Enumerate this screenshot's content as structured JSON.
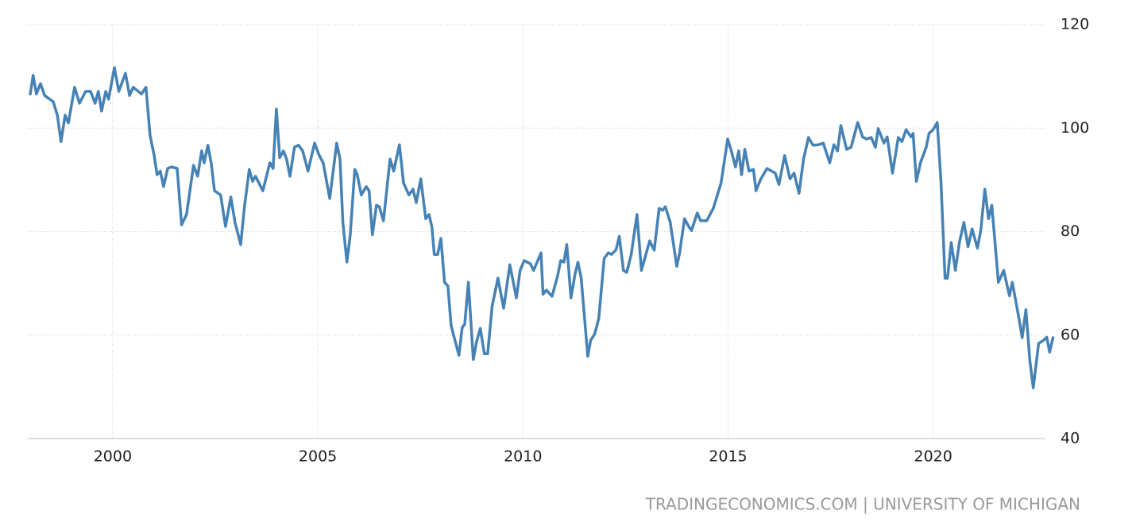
{
  "chart_data": {
    "type": "line",
    "color": "#4682b4",
    "grid": true,
    "source": "TRADINGECONOMICS.COM | UNIVERSITY OF MICHIGAN",
    "xlim": [
      1997.93,
      2022.95
    ],
    "xticks": [
      2000,
      2005,
      2010,
      2015,
      2020
    ],
    "ylim": [
      40,
      120
    ],
    "yticks": [
      40,
      60,
      80,
      100,
      120
    ],
    "x": [
      1997.99,
      1998.06,
      1998.14,
      1998.24,
      1998.34,
      1998.55,
      1998.65,
      1998.74,
      1998.84,
      1998.92,
      1999.07,
      1999.19,
      1999.34,
      1999.46,
      1999.57,
      1999.65,
      1999.73,
      1999.83,
      1999.9,
      2000.04,
      2000.15,
      2000.31,
      2000.41,
      2000.5,
      2000.7,
      2000.81,
      2000.91,
      2001.01,
      2001.08,
      2001.16,
      2001.24,
      2001.34,
      2001.43,
      2001.57,
      2001.68,
      2001.8,
      2001.97,
      2002.07,
      2002.17,
      2002.23,
      2002.32,
      2002.4,
      2002.48,
      2002.63,
      2002.75,
      2002.88,
      2002.98,
      2003.12,
      2003.21,
      2003.33,
      2003.41,
      2003.48,
      2003.66,
      2003.83,
      2003.91,
      2003.99,
      2004.07,
      2004.16,
      2004.24,
      2004.32,
      2004.43,
      2004.53,
      2004.63,
      2004.76,
      2004.92,
      2005.03,
      2005.13,
      2005.29,
      2005.46,
      2005.54,
      2005.61,
      2005.71,
      2005.79,
      2005.9,
      2005.96,
      2006.06,
      2006.18,
      2006.25,
      2006.33,
      2006.43,
      2006.5,
      2006.6,
      2006.76,
      2006.85,
      2006.99,
      2007.09,
      2007.22,
      2007.32,
      2007.4,
      2007.51,
      2007.63,
      2007.71,
      2007.78,
      2007.84,
      2007.92,
      2008.0,
      2008.09,
      2008.17,
      2008.25,
      2008.38,
      2008.44,
      2008.52,
      2008.58,
      2008.67,
      2008.79,
      2008.87,
      2008.96,
      2009.06,
      2009.14,
      2009.25,
      2009.39,
      2009.53,
      2009.68,
      2009.84,
      2009.93,
      2010.03,
      2010.18,
      2010.26,
      2010.36,
      2010.44,
      2010.49,
      2010.57,
      2010.71,
      2010.84,
      2010.92,
      2011.0,
      2011.07,
      2011.17,
      2011.27,
      2011.34,
      2011.42,
      2011.58,
      2011.65,
      2011.75,
      2011.85,
      2011.98,
      2012.08,
      2012.16,
      2012.27,
      2012.35,
      2012.45,
      2012.53,
      2012.64,
      2012.78,
      2012.89,
      2012.97,
      2013.09,
      2013.2,
      2013.32,
      2013.4,
      2013.47,
      2013.59,
      2013.75,
      2013.82,
      2013.94,
      2014.04,
      2014.11,
      2014.25,
      2014.33,
      2014.48,
      2014.64,
      2014.83,
      2014.99,
      2015.08,
      2015.18,
      2015.26,
      2015.33,
      2015.41,
      2015.51,
      2015.62,
      2015.68,
      2015.8,
      2015.95,
      2016.15,
      2016.24,
      2016.38,
      2016.51,
      2016.61,
      2016.73,
      2016.84,
      2016.96,
      2017.07,
      2017.21,
      2017.32,
      2017.48,
      2017.58,
      2017.67,
      2017.75,
      2017.89,
      2018.0,
      2018.16,
      2018.28,
      2018.37,
      2018.49,
      2018.59,
      2018.66,
      2018.8,
      2018.88,
      2019.01,
      2019.15,
      2019.24,
      2019.34,
      2019.46,
      2019.51,
      2019.59,
      2019.69,
      2019.83,
      2019.9,
      2020.0,
      2020.1,
      2020.19,
      2020.29,
      2020.35,
      2020.44,
      2020.54,
      2020.64,
      2020.75,
      2020.85,
      2020.95,
      2021.08,
      2021.16,
      2021.26,
      2021.35,
      2021.43,
      2021.59,
      2021.72,
      2021.86,
      2021.93,
      2022.09,
      2022.17,
      2022.26,
      2022.36,
      2022.44,
      2022.57,
      2022.69,
      2022.77,
      2022.84,
      2022.92
    ],
    "values": [
      106.6,
      110.2,
      106.6,
      108.6,
      106.3,
      105.1,
      102.5,
      97.4,
      102.5,
      101.0,
      107.9,
      104.8,
      107.1,
      107.1,
      104.8,
      107.1,
      103.3,
      107.1,
      105.6,
      111.7,
      107.1,
      110.6,
      106.3,
      107.9,
      106.6,
      107.9,
      98.6,
      94.8,
      91.0,
      91.7,
      88.7,
      92.2,
      92.5,
      92.2,
      81.3,
      83.3,
      92.8,
      90.7,
      95.6,
      93.3,
      96.7,
      93.3,
      87.9,
      87.1,
      81.0,
      86.7,
      81.8,
      77.5,
      84.8,
      92.0,
      89.7,
      90.7,
      87.9,
      93.3,
      92.2,
      103.7,
      94.3,
      95.6,
      94.0,
      90.7,
      96.3,
      96.7,
      95.6,
      91.7,
      97.1,
      94.8,
      93.3,
      86.4,
      97.1,
      94.0,
      81.8,
      74.1,
      79.4,
      92.0,
      91.0,
      87.1,
      88.7,
      87.9,
      79.4,
      85.1,
      84.8,
      82.1,
      94.0,
      91.7,
      96.8,
      89.4,
      87.1,
      88.2,
      85.6,
      90.2,
      82.5,
      83.3,
      81.0,
      75.6,
      75.6,
      78.7,
      70.2,
      69.5,
      61.8,
      57.9,
      56.1,
      61.5,
      62.1,
      70.2,
      55.3,
      58.7,
      61.3,
      56.4,
      56.4,
      65.6,
      71.0,
      65.2,
      73.6,
      67.2,
      72.5,
      74.4,
      73.8,
      72.5,
      74.4,
      75.9,
      67.9,
      68.7,
      67.5,
      71.3,
      74.4,
      74.1,
      77.5,
      67.2,
      71.8,
      74.1,
      71.0,
      55.9,
      59.0,
      60.2,
      63.3,
      74.8,
      75.9,
      75.6,
      76.5,
      79.1,
      72.5,
      72.1,
      75.6,
      83.3,
      72.5,
      74.8,
      78.2,
      76.4,
      84.5,
      84.1,
      84.8,
      81.8,
      73.3,
      75.9,
      82.5,
      81.0,
      80.2,
      83.6,
      82.1,
      82.1,
      84.5,
      89.4,
      97.9,
      95.6,
      92.5,
      95.6,
      91.0,
      95.9,
      91.7,
      92.0,
      87.9,
      90.2,
      92.2,
      91.3,
      89.1,
      94.7,
      90.2,
      91.3,
      87.4,
      94.0,
      98.2,
      96.7,
      96.8,
      97.1,
      93.3,
      96.8,
      95.6,
      100.5,
      95.9,
      96.3,
      101.1,
      98.3,
      97.9,
      98.2,
      96.3,
      99.9,
      97.1,
      98.3,
      91.3,
      98.2,
      97.4,
      99.7,
      98.3,
      99.0,
      89.7,
      93.3,
      96.3,
      99.0,
      99.7,
      101.1,
      89.7,
      71.0,
      71.0,
      77.9,
      72.5,
      77.9,
      81.8,
      77.1,
      80.5,
      76.8,
      80.2,
      88.2,
      82.5,
      85.1,
      70.2,
      72.5,
      67.6,
      70.2,
      63.3,
      59.5,
      64.9,
      54.9,
      49.8,
      58.4,
      59.0,
      59.6,
      56.7,
      59.5
    ]
  }
}
